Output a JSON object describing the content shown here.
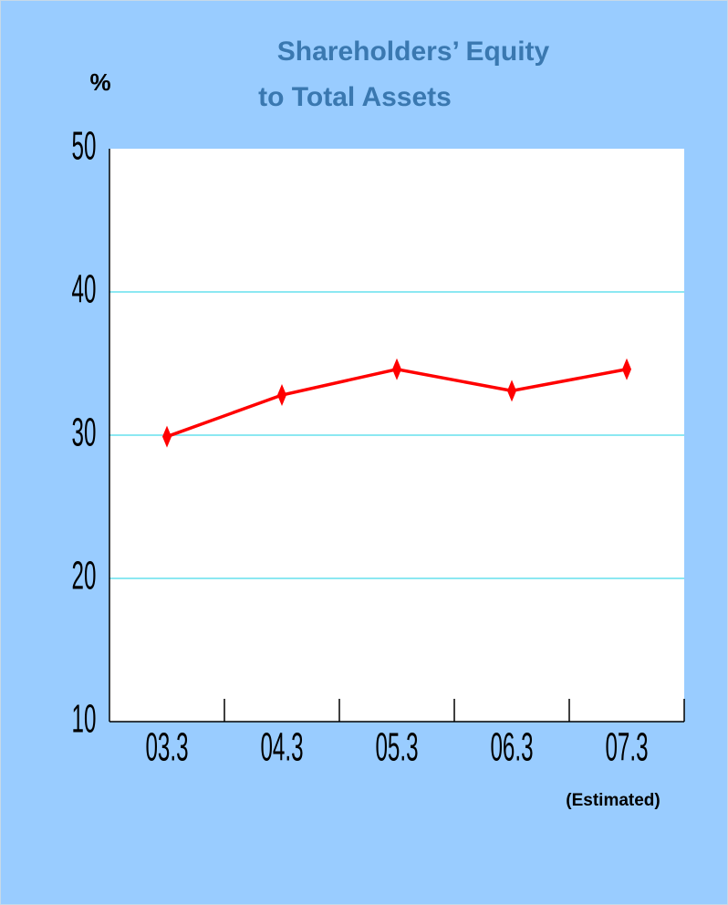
{
  "chart_data": {
    "type": "line",
    "title": [
      "Shareholders’ Equity",
      "to Total Assets"
    ],
    "y_label": "%",
    "annotation": "(Estimated)",
    "categories": [
      "03.3",
      "04.3",
      "05.3",
      "06.3",
      "07.3"
    ],
    "series": [
      {
        "name": "Shareholders’ Equity to Total Assets",
        "color": "#ff0000",
        "values": [
          29.9,
          32.8,
          34.6,
          33.1,
          34.6
        ]
      }
    ],
    "ylim": [
      10,
      50
    ],
    "yticks": [
      10,
      20,
      30,
      40,
      50
    ],
    "grid": true,
    "grid_color": "#66e0ee"
  }
}
